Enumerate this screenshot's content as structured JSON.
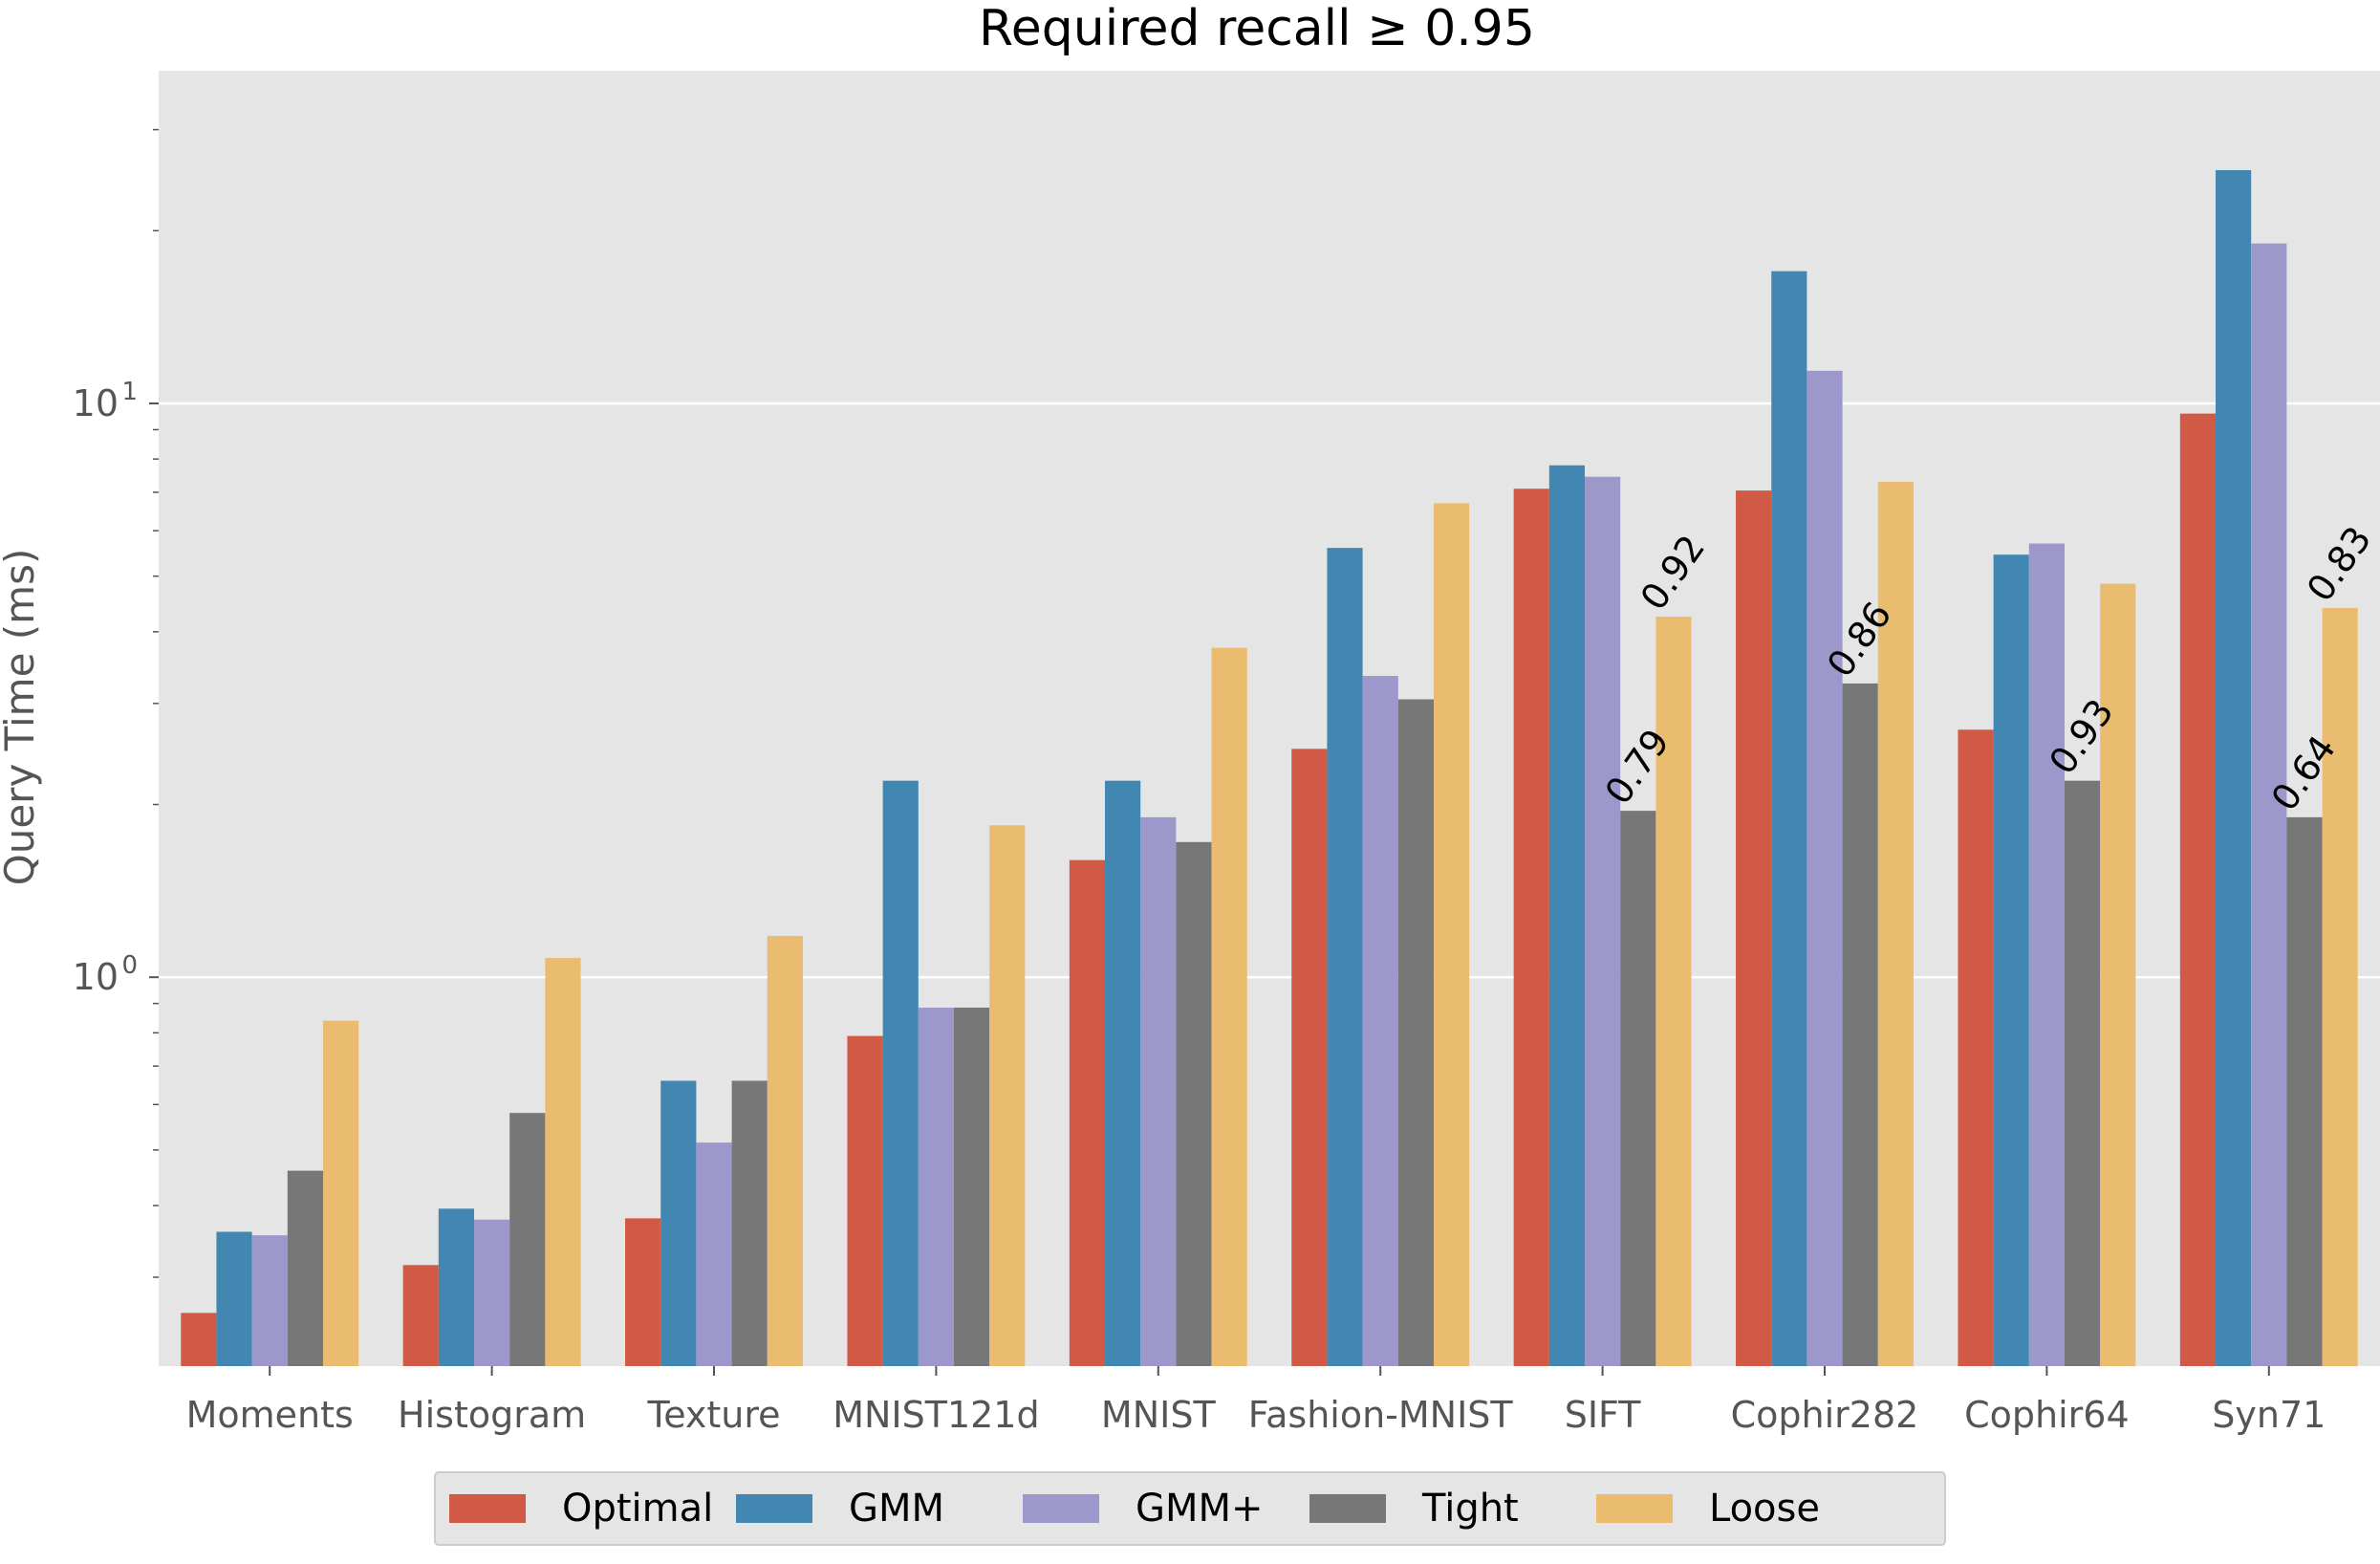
{
  "chart_data": {
    "type": "bar",
    "title": "Required recall ≥ 0.95",
    "xlabel": "",
    "ylabel": "Query Time (ms)",
    "yscale": "log",
    "ylim": [
      0.21,
      38
    ],
    "yticks": [
      {
        "value": 1,
        "base": "10",
        "exp": "0"
      },
      {
        "value": 10,
        "base": "10",
        "exp": "1"
      }
    ],
    "grid": true,
    "legend_position": "bottom",
    "categories": [
      "Moments",
      "Histogram",
      "Texture",
      "MNIST121d",
      "MNIST",
      "Fashion-MNIST",
      "SIFT",
      "Cophir282",
      "Cophir64",
      "Syn71"
    ],
    "series": [
      {
        "name": "Optimal",
        "color": "#d05a45",
        "values": [
          0.26,
          0.315,
          0.38,
          0.79,
          1.6,
          2.5,
          7.1,
          7.05,
          2.7,
          9.6
        ]
      },
      {
        "name": "GMM",
        "color": "#4287b2",
        "values": [
          0.36,
          0.395,
          0.66,
          2.2,
          2.2,
          5.6,
          7.8,
          17,
          5.45,
          25.5
        ]
      },
      {
        "name": "GMM+",
        "color": "#9d98cc",
        "values": [
          0.355,
          0.378,
          0.515,
          0.885,
          1.9,
          3.35,
          7.45,
          11.4,
          5.7,
          19
        ]
      },
      {
        "name": "Tight",
        "color": "#777777",
        "values": [
          0.46,
          0.58,
          0.66,
          0.885,
          1.72,
          3.05,
          1.95,
          3.25,
          2.2,
          1.9
        ]
      },
      {
        "name": "Loose",
        "color": "#e9bc6f",
        "values": [
          0.84,
          1.08,
          1.18,
          1.84,
          3.75,
          6.7,
          4.25,
          7.3,
          4.85,
          4.4
        ]
      }
    ],
    "annotations": [
      {
        "category": "SIFT",
        "series": "Tight",
        "text": "0.79"
      },
      {
        "category": "SIFT",
        "series": "Loose",
        "text": "0.92"
      },
      {
        "category": "Cophir282",
        "series": "Tight",
        "text": "0.86"
      },
      {
        "category": "Cophir64",
        "series": "Tight",
        "text": "0.93"
      },
      {
        "category": "Syn71",
        "series": "Tight",
        "text": "0.64"
      },
      {
        "category": "Syn71",
        "series": "Loose",
        "text": "0.83"
      }
    ]
  }
}
